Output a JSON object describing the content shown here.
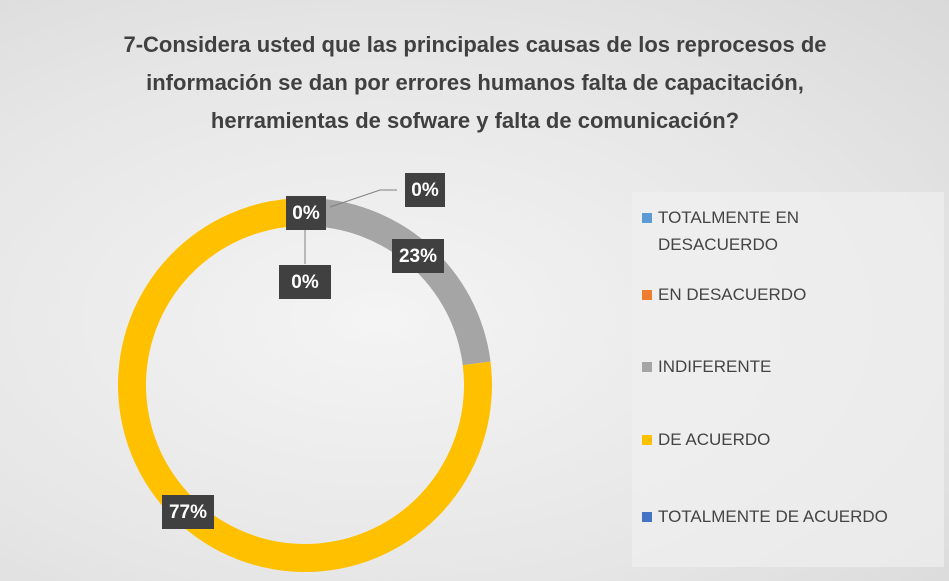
{
  "chart_data": {
    "type": "donut",
    "title": "7-Considera usted que las principales causas de los reprocesos de información se dan por  errores humanos falta de capacitación, herramientas de sofware y falta de comunicación?",
    "categories": [
      "TOTALMENTE EN DESACUERDO",
      "EN DESACUERDO",
      "INDIFERENTE",
      "DE ACUERDO",
      "TOTALMENTE DE ACUERDO"
    ],
    "values": [
      0,
      0,
      23,
      77,
      0
    ],
    "value_labels": [
      "0%",
      "0%",
      "23%",
      "77%",
      "0%"
    ],
    "colors": [
      "#5b9bd5",
      "#ed7d31",
      "#a5a5a5",
      "#ffc000",
      "#4472c4"
    ],
    "legend": "right"
  }
}
